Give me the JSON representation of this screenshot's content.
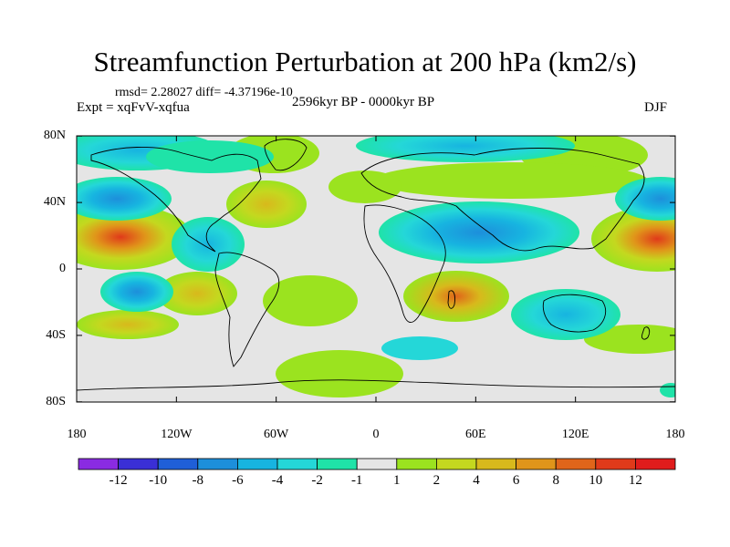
{
  "title": "Streamfunction Perturbation at 200 hPa (km2/s)",
  "stats": "rmsd= 2.28027 diff= -4.37196e-10",
  "period": "2596kyr BP - 0000kyr BP",
  "experiment": "Expt = xqFvV-xqfua",
  "season": "DJF",
  "lat_ticks": [
    {
      "label": "80N",
      "lat": 80
    },
    {
      "label": "40N",
      "lat": 40
    },
    {
      "label": "0",
      "lat": 0
    },
    {
      "label": "40S",
      "lat": -40
    },
    {
      "label": "80S",
      "lat": -80
    }
  ],
  "lon_ticks": [
    {
      "label": "180",
      "lon": -180
    },
    {
      "label": "120W",
      "lon": -120
    },
    {
      "label": "60W",
      "lon": -60
    },
    {
      "label": "0",
      "lon": 0
    },
    {
      "label": "60E",
      "lon": 60
    },
    {
      "label": "120E",
      "lon": 120
    },
    {
      "label": "180",
      "lon": 180
    }
  ],
  "colorbar": {
    "colors": [
      "#8a2be2",
      "#3a2fd6",
      "#1f5fd8",
      "#1d8fdb",
      "#17b4e0",
      "#24d7d8",
      "#1fe3a8",
      "#e5e5e5",
      "#9be31f",
      "#c4d81f",
      "#d8b91c",
      "#e0951a",
      "#e0651a",
      "#e03a1a",
      "#e01c1c"
    ],
    "labels": [
      "-12",
      "-10",
      "-8",
      "-6",
      "-4",
      "-2",
      "-1",
      "1",
      "2",
      "4",
      "6",
      "8",
      "10",
      "12"
    ]
  }
}
